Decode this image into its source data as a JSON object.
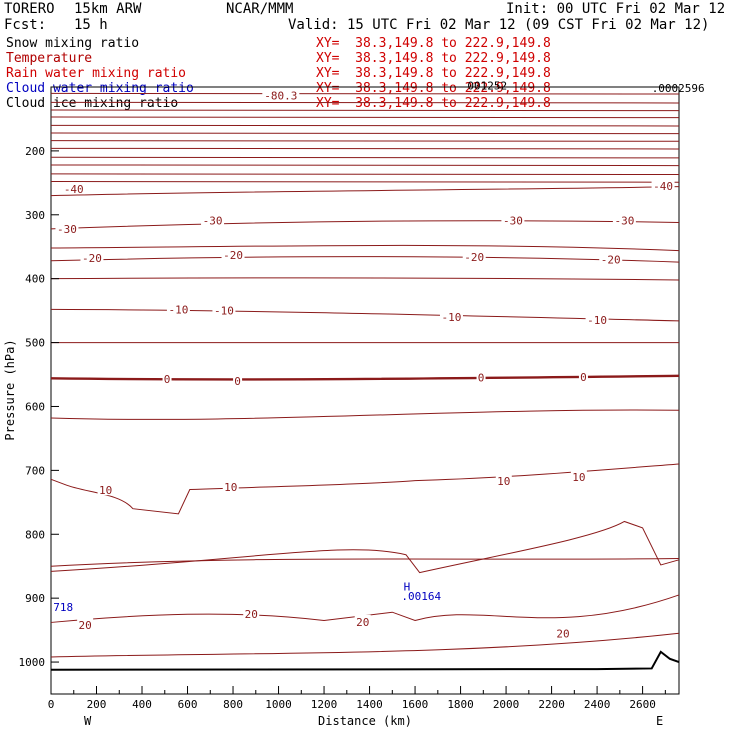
{
  "header": {
    "model": "TORERO",
    "resolution": "15km ARW",
    "org": "NCAR/MMM",
    "init": "Init: 00 UTC Fri 02 Mar 12",
    "fcst_label": "Fcst:",
    "fcst_value": "15 h",
    "valid": "Valid: 15 UTC Fri 02 Mar 12 (09 CST Fri 02 Mar 12)"
  },
  "legend": [
    {
      "name": "Snow mixing ratio",
      "color": "#000000",
      "xy": "XY=  38.3,149.8 to 222.9,149.8"
    },
    {
      "name": "Temperature",
      "color": "#b00000",
      "xy": "XY=  38.3,149.8 to 222.9,149.8"
    },
    {
      "name": "Rain water mixing ratio",
      "color": "#d00000",
      "xy": "XY=  38.3,149.8 to 222.9,149.8"
    },
    {
      "name": "Cloud water mixing ratio",
      "color": "#0000c0",
      "xy": "XY=  38.3,149.8 to 222.9,149.8"
    },
    {
      "name": "Cloud ice mixing ratio",
      "color": "#000000",
      "xy": "XY=  38.3,149.8 to 222.9,149.8"
    }
  ],
  "chart_data": {
    "type": "line",
    "title": "",
    "xlabel": "Distance (km)",
    "ylabel": "Pressure (hPa)",
    "x_ticks": [
      0,
      200,
      400,
      600,
      800,
      1000,
      1200,
      1400,
      1600,
      1800,
      2000,
      2200,
      2400,
      2600
    ],
    "y_ticks": [
      200,
      300,
      400,
      500,
      600,
      700,
      800,
      900,
      1000
    ],
    "xlim": [
      0,
      2760
    ],
    "ylim": [
      1050,
      100
    ],
    "y_scale": "linear, inverted",
    "x_end_labels": {
      "left": "W",
      "right": "E"
    },
    "temperature_contour_labels": [
      {
        "text": "-80.3",
        "x": 1010,
        "p": 113
      },
      {
        "text": "-40",
        "x": 100,
        "p": 260
      },
      {
        "text": "-40",
        "x": 2690,
        "p": 255
      },
      {
        "text": "-30",
        "x": 70,
        "p": 322
      },
      {
        "text": "-30",
        "x": 710,
        "p": 309
      },
      {
        "text": "-30",
        "x": 2030,
        "p": 309
      },
      {
        "text": "-30",
        "x": 2520,
        "p": 309
      },
      {
        "text": "-20",
        "x": 180,
        "p": 368
      },
      {
        "text": "-20",
        "x": 800,
        "p": 363
      },
      {
        "text": "-20",
        "x": 1860,
        "p": 366
      },
      {
        "text": "-20",
        "x": 2460,
        "p": 370
      },
      {
        "text": "-10",
        "x": 560,
        "p": 448
      },
      {
        "text": "-10",
        "x": 760,
        "p": 450
      },
      {
        "text": "-10",
        "x": 1760,
        "p": 460
      },
      {
        "text": "-10",
        "x": 2400,
        "p": 465
      },
      {
        "text": "0",
        "x": 510,
        "p": 557
      },
      {
        "text": "0",
        "x": 820,
        "p": 560
      },
      {
        "text": "0",
        "x": 1890,
        "p": 555
      },
      {
        "text": "0",
        "x": 2340,
        "p": 554
      },
      {
        "text": "10",
        "x": 240,
        "p": 731
      },
      {
        "text": "10",
        "x": 790,
        "p": 726
      },
      {
        "text": "10",
        "x": 1990,
        "p": 717
      },
      {
        "text": "10",
        "x": 2320,
        "p": 710
      },
      {
        "text": "20",
        "x": 150,
        "p": 942
      },
      {
        "text": "20",
        "x": 880,
        "p": 925
      },
      {
        "text": "20",
        "x": 1370,
        "p": 937
      },
      {
        "text": "20",
        "x": 2250,
        "p": 955
      }
    ],
    "annotations": [
      {
        "text": "H",
        "x": 1550,
        "p": 888,
        "color": "#0000c0"
      },
      {
        "text": ".00164",
        "x": 1540,
        "p": 903,
        "color": "#0000c0"
      },
      {
        "text": "718",
        "x": 10,
        "p": 920,
        "color": "#0000c0"
      },
      {
        "text": ".0002596",
        "x": 2640,
        "p": 108,
        "color": "#000000"
      },
      {
        "text": "001252",
        "x": 1830,
        "p": 104,
        "color": "#000000"
      }
    ],
    "series": [
      {
        "name": "Temperature",
        "kind": "isotherms",
        "color": "#8b1a1a",
        "step": 10,
        "range": [
          -80.3,
          20
        ],
        "zero_line_bold": true
      },
      {
        "name": "Terrain",
        "color": "#000000",
        "x": [
          0,
          2400,
          2640,
          2680,
          2720,
          2760
        ],
        "p": [
          1012,
          1011,
          1010,
          984,
          995,
          1000
        ]
      }
    ]
  }
}
